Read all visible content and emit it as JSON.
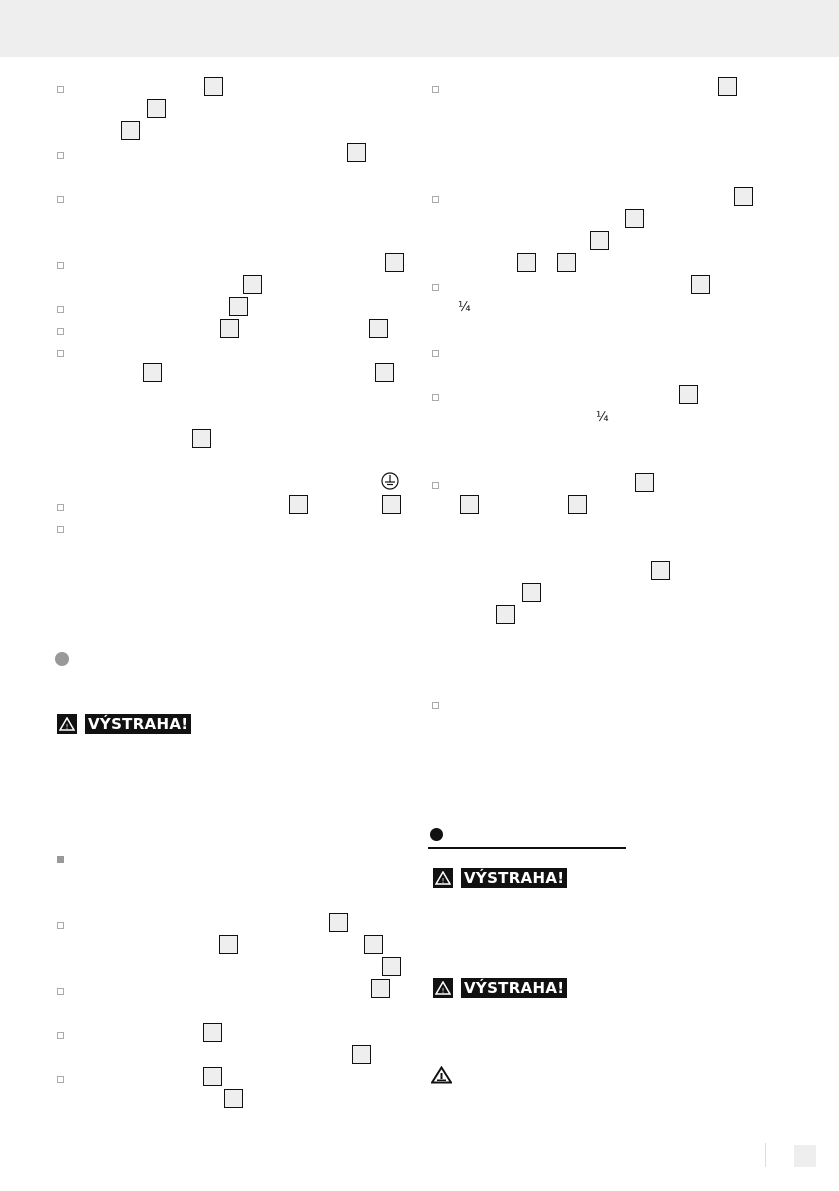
{
  "warning_label": "VÝSTRAHA!",
  "fraction": "¼",
  "colors": {
    "header": "#eeeeee",
    "reference_box": "#eeeeee",
    "warning_bg": "#111111"
  }
}
